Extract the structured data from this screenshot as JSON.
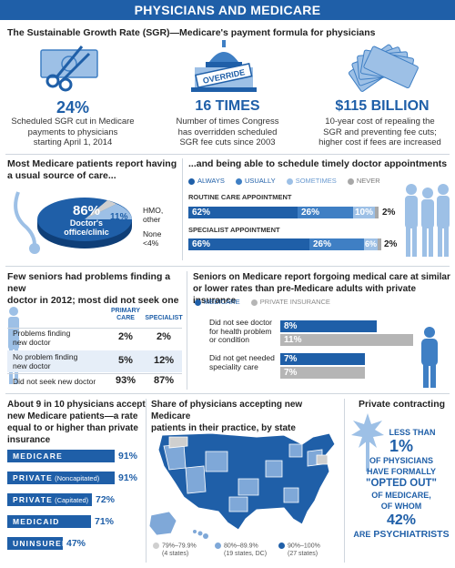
{
  "header": {
    "title": "PHYSICIANS AND MEDICARE"
  },
  "sgr": {
    "title": "The Sustainable Growth Rate (SGR)—Medicare's payment formula for physicians",
    "stats": [
      {
        "value": "24%",
        "text": [
          "Scheduled SGR cut in Medicare",
          "payments to physicians",
          "starting April 1, 2014"
        ]
      },
      {
        "value": "16 TIMES",
        "text": [
          "Number of times Congress",
          "has overridden scheduled",
          "SGR fee cuts since 2003"
        ],
        "stamp": "OVERRIDE"
      },
      {
        "value": "$115 BILLION",
        "text": [
          "10-year cost of repealing the",
          "SGR and preventing fee cuts;",
          "higher cost if fees are increased"
        ]
      }
    ]
  },
  "usual_source": {
    "title": [
      "Most Medicare patients report having",
      "a usual source of care..."
    ],
    "main_value": "86%",
    "main_label": [
      "Doctor's",
      "office/clinic"
    ],
    "slice2_value": "11%",
    "slice2_label": [
      "HMO,",
      "other"
    ],
    "slice3_label": [
      "None",
      "<4%"
    ]
  },
  "schedule": {
    "title": "...and being able to schedule timely doctor appointments",
    "legend": [
      {
        "label": "ALWAYS",
        "color": "#1f5fa8"
      },
      {
        "label": "USUALLY",
        "color": "#3f7fc4"
      },
      {
        "label": "SOMETIMES",
        "color": "#9dc0e6"
      },
      {
        "label": "NEVER",
        "color": "#a8a8a8"
      }
    ],
    "rows": [
      {
        "label": "ROUTINE CARE APPOINTMENT",
        "values": [
          "62%",
          "26%",
          "10%",
          "2%"
        ]
      },
      {
        "label": "SPECIALIST APPOINTMENT",
        "values": [
          "66%",
          "26%",
          "6%",
          "2%"
        ]
      }
    ]
  },
  "new_doctor": {
    "title": [
      "Few seniors had problems finding a new",
      "doctor in 2012; most did not seek one"
    ],
    "col1": [
      "PRIMARY",
      "CARE"
    ],
    "col2": "SPECIALIST",
    "rows": [
      {
        "label": [
          "Problems finding",
          "new doctor"
        ],
        "primary": "2%",
        "specialist": "2%"
      },
      {
        "label": [
          "No problem finding",
          "new doctor"
        ],
        "primary": "5%",
        "specialist": "12%"
      },
      {
        "label": [
          "Did not seek new doctor"
        ],
        "primary": "93%",
        "specialist": "87%"
      }
    ]
  },
  "forgoing": {
    "title": [
      "Seniors on Medicare report forgoing medical care at similar",
      "or lower rates than pre-Medicare adults with private insurance"
    ],
    "legend": [
      {
        "label": "MEDICARE",
        "color": "#1f5fa8"
      },
      {
        "label": "PRIVATE INSURANCE",
        "color": "#b5b5b5"
      }
    ],
    "groups": [
      {
        "label": [
          "Did not see doctor",
          "for health problem",
          "or condition"
        ],
        "medicare": "8%",
        "private": "11%"
      },
      {
        "label": [
          "Did not get needed",
          "speciality care"
        ],
        "medicare": "7%",
        "private": "7%"
      }
    ]
  },
  "accept": {
    "title": [
      "About 9 in 10 physicians accept",
      "new Medicare patients—a rate",
      "equal to or higher than private",
      "insurance"
    ],
    "rows": [
      {
        "label": "MEDICARE",
        "sub": "",
        "value": "91%",
        "pct": 91
      },
      {
        "label": "PRIVATE",
        "sub": "(Noncapitated)",
        "value": "91%",
        "pct": 91
      },
      {
        "label": "PRIVATE",
        "sub": "(Capitated)",
        "value": "72%",
        "pct": 72
      },
      {
        "label": "MEDICAID",
        "sub": "",
        "value": "71%",
        "pct": 71
      },
      {
        "label": "UNINSURED",
        "sub": "",
        "value": "47%",
        "pct": 47
      }
    ]
  },
  "state_map": {
    "title": [
      "Share of physicians accepting new Medicare",
      "patients in their practice, by state"
    ],
    "legend": [
      {
        "range": "79%–79.9%",
        "count": "(4 states)",
        "color": "#cfcfcf"
      },
      {
        "range": "80%–89.9%",
        "count": "(19 states, DC)",
        "color": "#7fa8d8"
      },
      {
        "range": "90%–100%",
        "count": "(27 states)",
        "color": "#1f5fa8"
      }
    ]
  },
  "private_contracting": {
    "title": "Private contracting",
    "lines": [
      "LESS THAN",
      "1%",
      "OF PHYSICIANS",
      "HAVE FORMALLY",
      "\"OPTED OUT\"",
      "OF MEDICARE,",
      "OF WHOM",
      "42%"
    ],
    "are": "ARE",
    "psych": "PSYCHIATRISTS"
  }
}
